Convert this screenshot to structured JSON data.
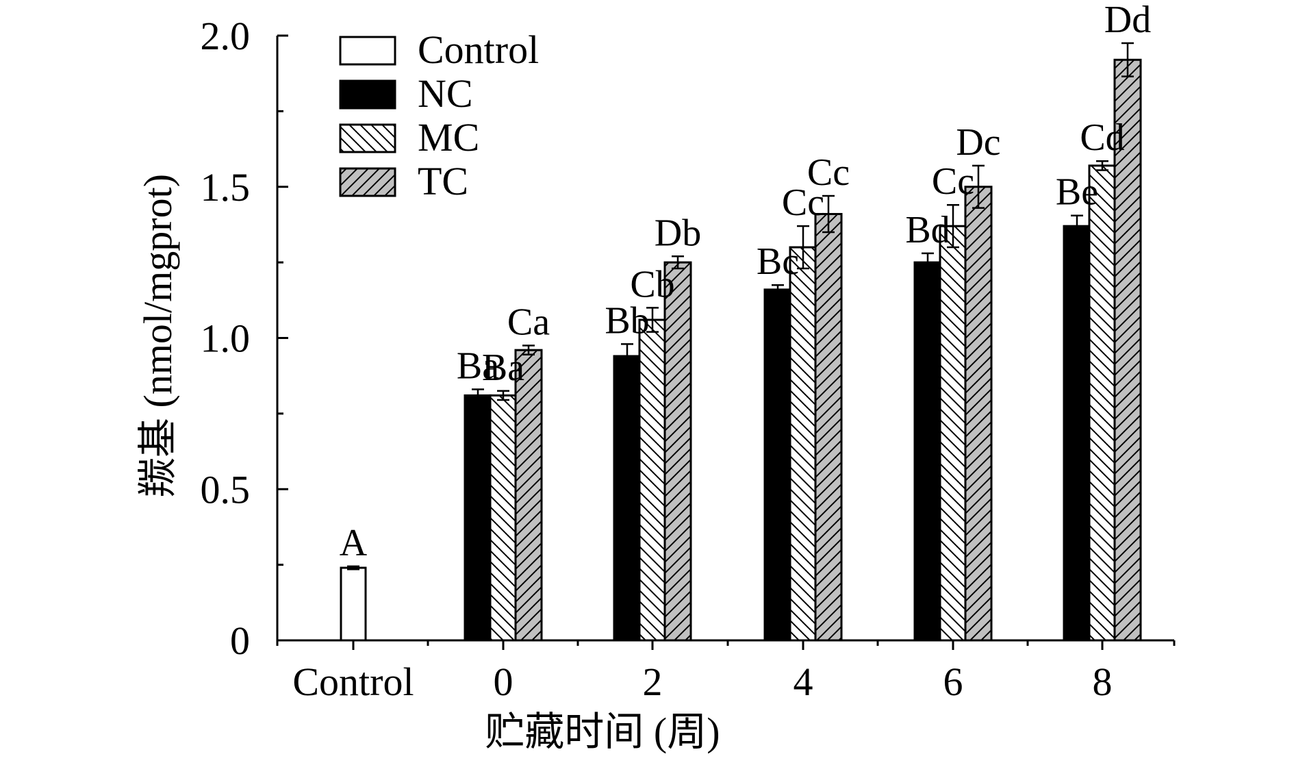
{
  "chart_data": {
    "type": "bar",
    "title": "",
    "xlabel": "贮藏时间 (周)",
    "ylabel": "羰基 (nmol/mgprot)",
    "ylim": [
      0,
      2.0
    ],
    "yticks": [
      {
        "value": 0,
        "label": "0"
      },
      {
        "value": 0.5,
        "label": "0.5"
      },
      {
        "value": 1.0,
        "label": "1.0"
      },
      {
        "value": 1.5,
        "label": "1.5"
      },
      {
        "value": 2.0,
        "label": "2.0"
      }
    ],
    "categories": [
      "Control",
      "0",
      "2",
      "4",
      "6",
      "8"
    ],
    "series": [
      {
        "name": "Control",
        "fill": "#ffffff",
        "pattern": "none",
        "values": [
          0.24,
          null,
          null,
          null,
          null,
          null
        ],
        "errors": [
          0.005,
          null,
          null,
          null,
          null,
          null
        ],
        "labels": [
          "A",
          null,
          null,
          null,
          null,
          null
        ]
      },
      {
        "name": "NC",
        "fill": "#000000",
        "pattern": "solid",
        "values": [
          null,
          0.81,
          0.94,
          1.16,
          1.25,
          1.37
        ],
        "errors": [
          null,
          0.02,
          0.04,
          0.015,
          0.03,
          0.035
        ],
        "labels": [
          null,
          "Ba",
          "Bb",
          "Bc",
          "Bd",
          "Be"
        ]
      },
      {
        "name": "MC",
        "fill": "#ffffff",
        "pattern": "hatch-down",
        "values": [
          null,
          0.81,
          1.06,
          1.3,
          1.37,
          1.57
        ],
        "errors": [
          null,
          0.015,
          0.04,
          0.07,
          0.07,
          0.015
        ],
        "labels": [
          null,
          "Ba",
          "Cb",
          "Cc",
          "Cc",
          "Cd"
        ]
      },
      {
        "name": "TC",
        "fill": "#c0c0c0",
        "pattern": "hatch-up",
        "values": [
          null,
          0.96,
          1.25,
          1.41,
          1.5,
          1.92
        ],
        "errors": [
          null,
          0.015,
          0.02,
          0.06,
          0.07,
          0.055
        ],
        "labels": [
          null,
          "Ca",
          "Db",
          "Cc",
          "Dc",
          "Dd"
        ]
      }
    ],
    "legend": {
      "position": "top-left",
      "entries": [
        "Control",
        "NC",
        "MC",
        "TC"
      ]
    }
  }
}
